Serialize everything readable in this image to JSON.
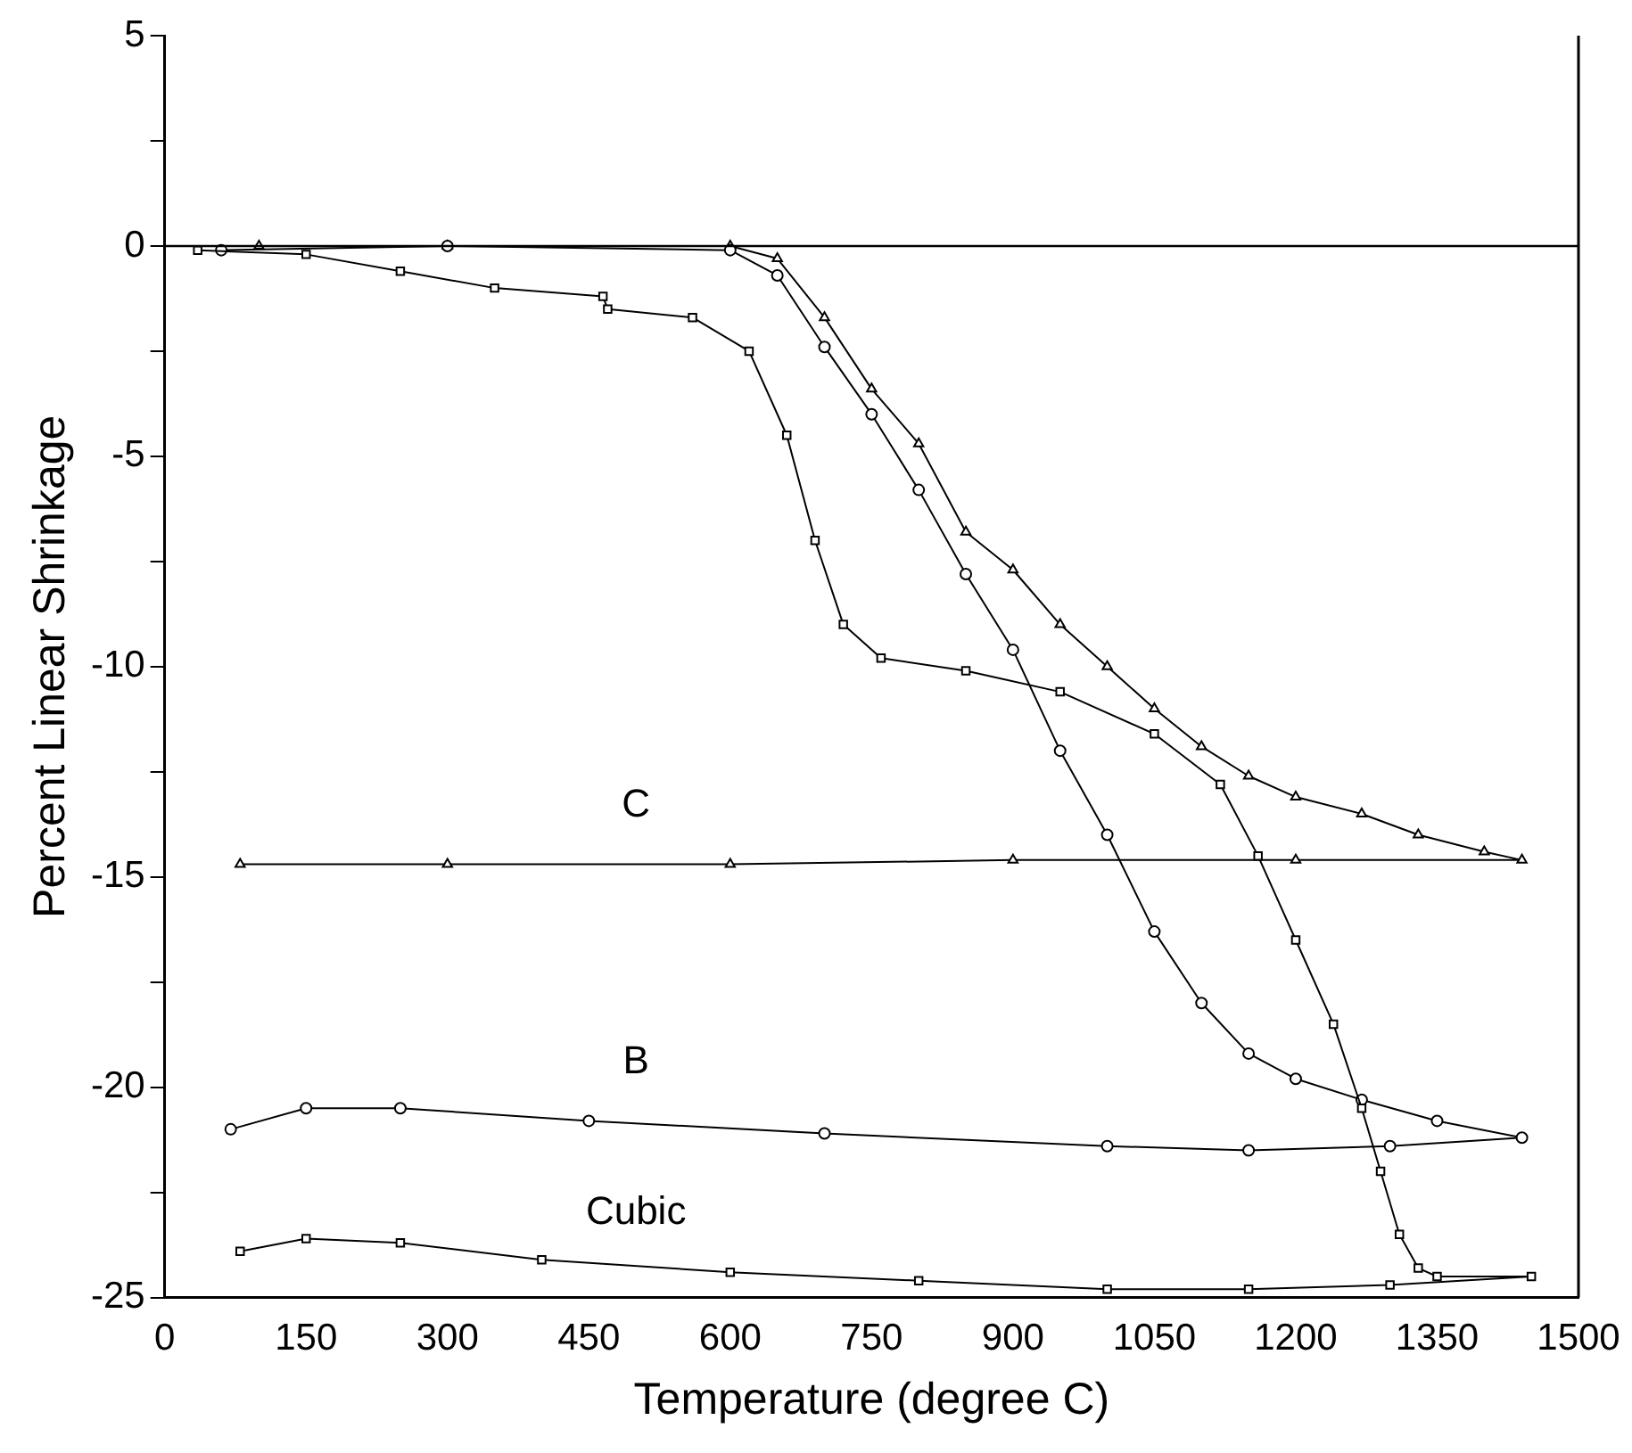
{
  "chart_data": {
    "type": "line",
    "xlabel": "Temperature (degree C)",
    "ylabel": "Percent Linear Shrinkage",
    "xlim": [
      0,
      1500
    ],
    "xticks": [
      0,
      150,
      300,
      450,
      600,
      750,
      900,
      1050,
      1200,
      1350,
      1500
    ],
    "ylim": [
      -25,
      5
    ],
    "yticks": [
      5,
      {
        "value": 2.5,
        "label": null
      },
      0,
      {
        "value": -2.5,
        "label": null
      },
      -5,
      {
        "value": -7.5,
        "label": null
      },
      -10,
      {
        "value": -12.5,
        "label": null
      },
      -15,
      {
        "value": -17.5,
        "label": null
      },
      -20,
      {
        "value": -22.5,
        "label": null
      },
      -25
    ],
    "grid": false,
    "legend": false,
    "line_style": "solid",
    "ref_lines": [
      {
        "axis": "y",
        "value": 0,
        "color": "#000000"
      }
    ],
    "series": [
      {
        "name": "Cubic",
        "color": "#000000",
        "marker": "square",
        "x": [
          35,
          150,
          250,
          350,
          465,
          470,
          560,
          620,
          660,
          690,
          720,
          760,
          850,
          950,
          1050,
          1120,
          1160,
          1200,
          1240,
          1270,
          1290,
          1310,
          1330,
          1350,
          1450,
          1300,
          1150,
          1000,
          800,
          600,
          400,
          250,
          150,
          80
        ],
        "values": [
          -0.1,
          -0.2,
          -0.6,
          -1.0,
          -1.2,
          -1.5,
          -1.7,
          -2.5,
          -4.5,
          -7,
          -9,
          -9.8,
          -10.1,
          -10.6,
          -11.6,
          -12.8,
          -14.5,
          -16.5,
          -18.5,
          -20.5,
          -22,
          -23.5,
          -24.3,
          -24.5,
          -24.5,
          -24.7,
          -24.8,
          -24.8,
          -24.6,
          -24.4,
          -24.1,
          -23.7,
          -23.6,
          -23.9
        ]
      },
      {
        "name": "B",
        "color": "#000000",
        "marker": "circle",
        "x": [
          60,
          300,
          600,
          650,
          700,
          750,
          800,
          850,
          900,
          950,
          1000,
          1050,
          1100,
          1150,
          1200,
          1270,
          1350,
          1440,
          1300,
          1150,
          1000,
          700,
          450,
          250,
          150,
          70
        ],
        "values": [
          -0.1,
          0,
          -0.1,
          -0.7,
          -2.4,
          -4,
          -5.8,
          -7.8,
          -9.6,
          -12,
          -14,
          -16.3,
          -18,
          -19.2,
          -19.8,
          -20.3,
          -20.8,
          -21.2,
          -21.4,
          -21.5,
          -21.4,
          -21.1,
          -20.8,
          -20.5,
          -20.5,
          -21.0
        ]
      },
      {
        "name": "C",
        "color": "#000000",
        "marker": "triangle",
        "x": [
          100,
          300,
          600,
          650,
          700,
          750,
          800,
          850,
          900,
          950,
          1000,
          1050,
          1100,
          1150,
          1200,
          1270,
          1330,
          1400,
          1440,
          1200,
          900,
          600,
          300,
          80
        ],
        "values": [
          0,
          0,
          0,
          -0.3,
          -1.7,
          -3.4,
          -4.7,
          -6.8,
          -7.7,
          -9,
          -10,
          -11,
          -11.9,
          -12.6,
          -13.1,
          -13.5,
          -14,
          -14.4,
          -14.6,
          -14.6,
          -14.6,
          -14.7,
          -14.7,
          -14.7
        ]
      }
    ]
  }
}
